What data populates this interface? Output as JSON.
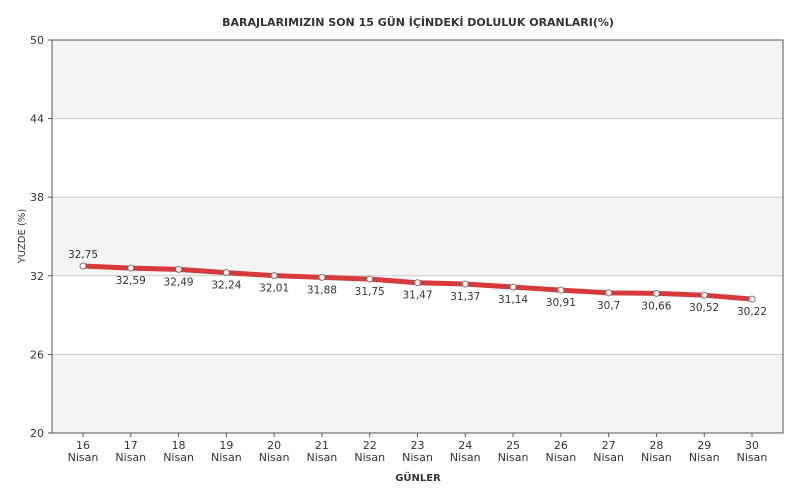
{
  "chart_data": {
    "type": "line",
    "title": "BARAJLARIMIZIN SON 15 GÜN İÇİNDEKİ DOLULUK ORANLARI(%)",
    "xlabel": "GÜNLER",
    "ylabel": "YUZDE (%)",
    "ylim": [
      20,
      50
    ],
    "yticks": [
      20,
      26,
      32,
      38,
      44,
      50
    ],
    "categories": [
      [
        "16",
        "Nisan"
      ],
      [
        "17",
        "Nisan"
      ],
      [
        "18",
        "Nisan"
      ],
      [
        "19",
        "Nisan"
      ],
      [
        "20",
        "Nisan"
      ],
      [
        "21",
        "Nisan"
      ],
      [
        "22",
        "Nisan"
      ],
      [
        "23",
        "Nisan"
      ],
      [
        "24",
        "Nisan"
      ],
      [
        "25",
        "Nisan"
      ],
      [
        "26",
        "Nisan"
      ],
      [
        "27",
        "Nisan"
      ],
      [
        "28",
        "Nisan"
      ],
      [
        "29",
        "Nisan"
      ],
      [
        "30",
        "Nisan"
      ]
    ],
    "series": [
      {
        "values": [
          32.75,
          32.59,
          32.49,
          32.24,
          32.01,
          31.88,
          31.75,
          31.47,
          31.37,
          31.14,
          30.91,
          30.7,
          30.66,
          30.52,
          30.22
        ],
        "labels": [
          "32,75",
          "32,59",
          "32,49",
          "32,24",
          "32,01",
          "31,88",
          "31,75",
          "31,47",
          "31,37",
          "31,14",
          "30,91",
          "30,7",
          "30,66",
          "30,52",
          "30,22"
        ]
      }
    ],
    "grid": true,
    "colors": {
      "line": "#d63a3a",
      "band": "#f4f4f4",
      "grid": "#cccccc",
      "frame": "#555555"
    }
  }
}
